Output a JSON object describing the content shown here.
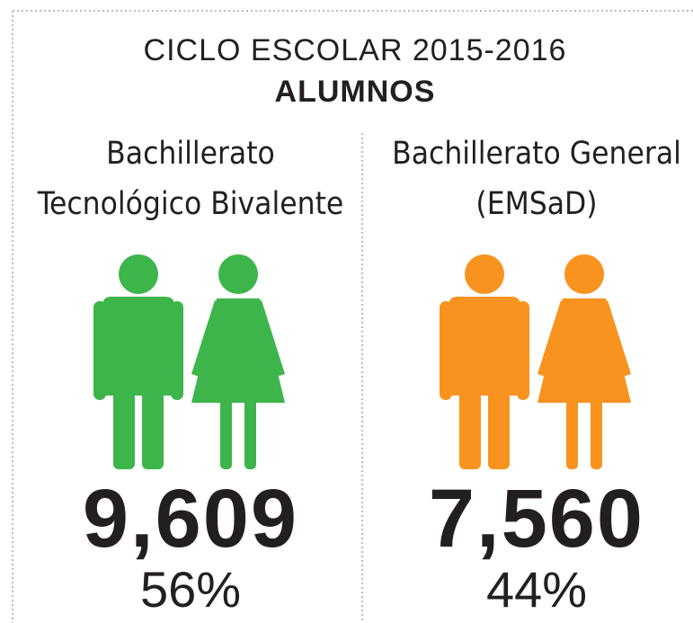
{
  "header": {
    "title": "CICLO ESCOLAR 2015-2016",
    "subtitle": "ALUMNOS"
  },
  "columns": [
    {
      "label_lines": [
        "Bachillerato",
        "Tecnológico Bivalente"
      ],
      "value": "9,609",
      "percent": "56%",
      "color": "#3db54a"
    },
    {
      "label_lines": [
        "Bachillerato General",
        "(EMSaD)"
      ],
      "value": "7,560",
      "percent": "44%",
      "color": "#f7931e"
    }
  ]
}
